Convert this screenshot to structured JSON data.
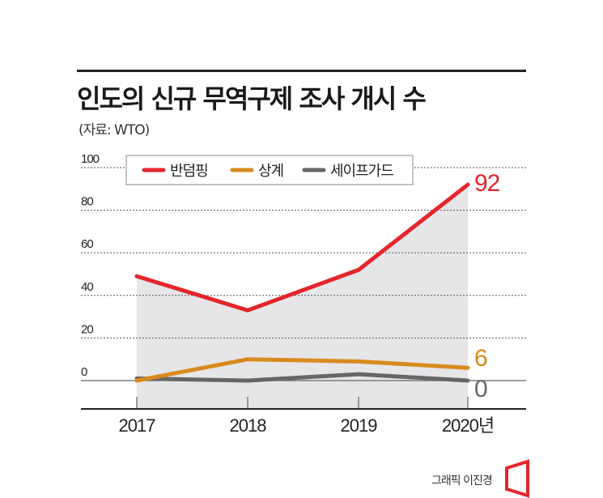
{
  "title": "인도의 신규 무역구제 조사 개시 수",
  "source": "(자료: WTO)",
  "credit": "그래픽 이진경",
  "chart_data": {
    "type": "line",
    "x": [
      "2017",
      "2018",
      "2019",
      "2020년"
    ],
    "ylim": [
      0,
      100
    ],
    "yticks": [
      "0",
      "20",
      "40",
      "60",
      "80",
      "100"
    ],
    "grid": true,
    "legend": "top",
    "series": [
      {
        "name": "반덤핑",
        "values": [
          49,
          33,
          52,
          92
        ],
        "color": "#e3262c",
        "end_label": "92",
        "area_fill": "#e6e6e8"
      },
      {
        "name": "상계",
        "values": [
          0,
          10,
          9,
          6
        ],
        "color": "#d98a1f",
        "end_label": "6"
      },
      {
        "name": "세이프가드",
        "values": [
          1,
          0,
          3,
          0
        ],
        "color": "#666666",
        "end_label": "0"
      }
    ]
  }
}
